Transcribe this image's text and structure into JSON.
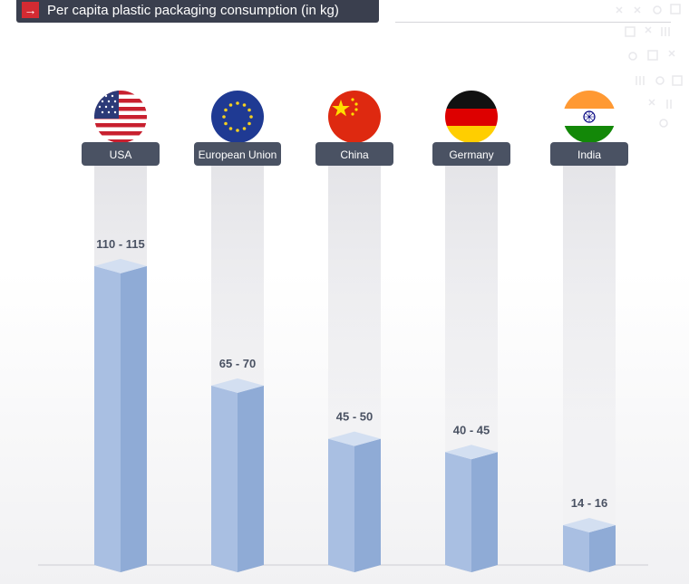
{
  "header": {
    "title": "Per capita plastic packaging consumption (in kg)"
  },
  "colors": {
    "header_bg": "#3a3f4e",
    "arrow_bg": "#d32b32",
    "label_bg": "#4a5263",
    "bar_front": "#a9bfe2",
    "bar_side": "#8fabd6",
    "bar_top": "#d3dff1"
  },
  "chart_data": {
    "type": "bar",
    "categories": [
      "USA",
      "European Union",
      "China",
      "Germany",
      "India"
    ],
    "ranges": [
      [
        110,
        115
      ],
      [
        65,
        70
      ],
      [
        45,
        50
      ],
      [
        40,
        45
      ],
      [
        14,
        16
      ]
    ],
    "value_labels": [
      "110 - 115",
      "65 - 70",
      "45 - 50",
      "40 - 45",
      "14 - 16"
    ],
    "flags": [
      "usa-flag-icon",
      "eu-flag-icon",
      "china-flag-icon",
      "germany-flag-icon",
      "india-flag-icon"
    ],
    "title": "",
    "xlabel": "",
    "ylabel": "",
    "grid": false,
    "legend": "none"
  }
}
